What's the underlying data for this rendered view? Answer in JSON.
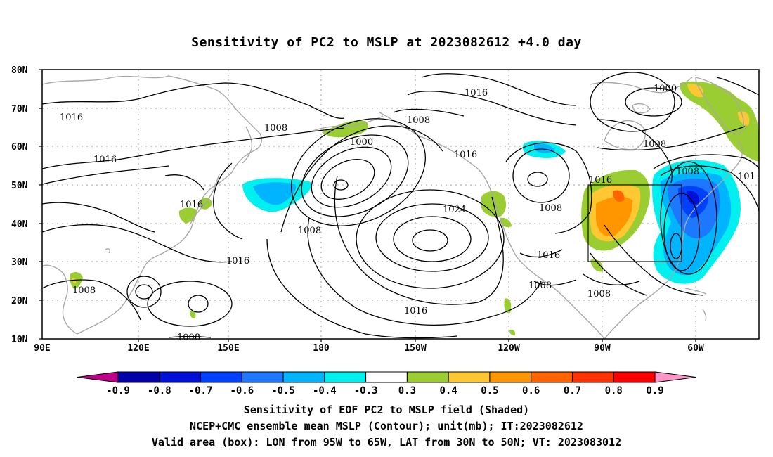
{
  "title": "Sensitivity of PC2 to MSLP at 2023082612 +4.0 day",
  "lat_labels": [
    "80N",
    "70N",
    "60N",
    "50N",
    "40N",
    "30N",
    "20N",
    "10N"
  ],
  "lon_labels": [
    "90E",
    "120E",
    "150E",
    "180",
    "150W",
    "120W",
    "90W",
    "60W"
  ],
  "contour_labels": [
    "1016",
    "1008",
    "1016",
    "1016",
    "1008",
    "1000",
    "1008",
    "1016",
    "1000",
    "1008",
    "1008",
    "1016",
    "1024",
    "1016",
    "1008",
    "1008",
    "1016",
    "1008",
    "1016",
    "1008",
    "1016",
    "1008",
    "1016",
    "101",
    "1008"
  ],
  "colorbar": {
    "ticks": [
      "-0.9",
      "-0.8",
      "-0.7",
      "-0.6",
      "-0.5",
      "-0.4",
      "-0.3",
      "0.3",
      "0.4",
      "0.5",
      "0.6",
      "0.7",
      "0.8",
      "0.9"
    ],
    "colors": [
      "#c0008a",
      "#0000aa",
      "#0010d8",
      "#0040ff",
      "#1e78ff",
      "#00b4ff",
      "#00f0f0",
      "#ffffff",
      "#9acd32",
      "#ffc832",
      "#ff9600",
      "#ff6400",
      "#ff3200",
      "#ff0000",
      "#ff96c8"
    ]
  },
  "captions": {
    "line1": "Sensitivity of EOF PC2 to MSLP field (Shaded)",
    "line2": "NCEP+CMC ensemble mean MSLP (Contour); unit(mb); IT:2023082612",
    "line3": "Valid area (box): LON from 95W to 65W, LAT from 30N to 50N; VT: 2023083012"
  },
  "map": {
    "lon_range": [
      "90E",
      "50W"
    ],
    "lat_range": [
      "10N",
      "80N"
    ],
    "valid_box": {
      "lon": [
        "95W",
        "65W"
      ],
      "lat": [
        "30N",
        "50N"
      ]
    }
  }
}
